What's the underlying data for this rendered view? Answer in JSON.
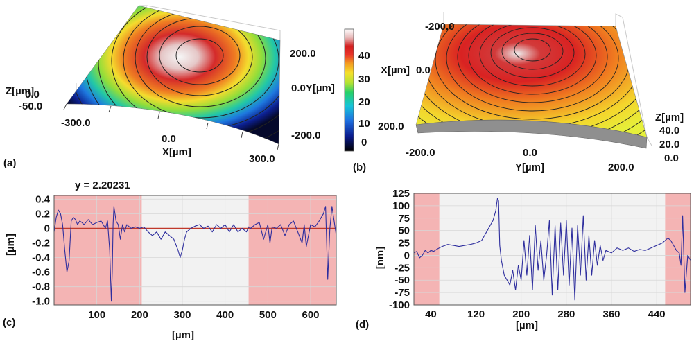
{
  "panels": {
    "a": {
      "label": "(a)",
      "z_axis_label": "Z[µm]",
      "z_ticks": [
        "0.0",
        "-50.0"
      ],
      "x_axis_label": "X[µm]",
      "x_ticks": [
        "-300.0",
        "0.0",
        "300.0"
      ],
      "y_axis_label": "0.0Y[µm]",
      "y_ticks": [
        "200.0",
        "-200.0"
      ]
    },
    "colorbar": {
      "ticks": [
        "40",
        "30",
        "20",
        "10",
        "0"
      ],
      "colors": [
        "#000000",
        "#0a1a8c",
        "#1e6fe0",
        "#17c4d8",
        "#27d06a",
        "#b5e233",
        "#f5e02c",
        "#f39a21",
        "#e8342a",
        "#d21f1f",
        "#e7b8b8",
        "#ffffff"
      ]
    },
    "b": {
      "label": "(b)",
      "x_axis_label": "X[µm]",
      "x_tick_mid": "0.0",
      "x_ticks": [
        "-200.0",
        "200.0"
      ],
      "y_axis_label": "Y[µm]",
      "y_ticks": [
        "-200.0",
        "0.0",
        "200.0"
      ],
      "z_axis_label": "Z[µm]",
      "z_ticks": [
        "40.0",
        "20.0",
        "0.0"
      ]
    },
    "c": {
      "label": "(c)",
      "annotation": "y = 2.20231",
      "ylabel": "[µm]",
      "xlabel": "[µm]"
    },
    "d": {
      "label": "(d)",
      "ylabel": "[nm]",
      "xlabel": "[µm]"
    }
  },
  "chart_data": [
    {
      "panel": "c",
      "type": "line",
      "xlabel": "[µm]",
      "ylabel": "[µm]",
      "xlim": [
        0,
        660
      ],
      "ylim": [
        -1.05,
        0.45
      ],
      "x_ticks": [
        100,
        200,
        300,
        400,
        500,
        600
      ],
      "y_ticks": [
        0.4,
        0.2,
        0,
        -0.2,
        -0.4,
        -0.6,
        -0.8,
        -1.0
      ],
      "y_tick_labels": [
        "0.4",
        "0.2",
        "0",
        "-0.2",
        "-0.4",
        "-0.6",
        "-0.8",
        "-1.0"
      ],
      "shaded_regions": [
        [
          0,
          205
        ],
        [
          455,
          660
        ]
      ],
      "reference_line": 0,
      "series_color": "#2e2e9e",
      "reference_color": "#c0392b",
      "shade_color": "#f4a9a9",
      "x": [
        0,
        5,
        10,
        15,
        20,
        25,
        30,
        35,
        40,
        45,
        50,
        55,
        60,
        65,
        70,
        80,
        90,
        100,
        110,
        120,
        125,
        130,
        134,
        136,
        138,
        140,
        145,
        150,
        155,
        160,
        165,
        170,
        180,
        190,
        200,
        210,
        220,
        230,
        240,
        250,
        260,
        270,
        280,
        290,
        295,
        300,
        305,
        310,
        320,
        330,
        340,
        350,
        360,
        370,
        380,
        390,
        400,
        410,
        420,
        430,
        440,
        450,
        455,
        460,
        470,
        480,
        490,
        500,
        505,
        510,
        520,
        530,
        540,
        550,
        560,
        570,
        580,
        585,
        590,
        600,
        610,
        620,
        630,
        635,
        640,
        645,
        650,
        655,
        660
      ],
      "y": [
        -0.05,
        0.15,
        0.25,
        0.2,
        0.05,
        -0.3,
        -0.6,
        -0.45,
        0.1,
        0.15,
        0.12,
        0.05,
        0.1,
        0.08,
        0.05,
        0.12,
        0.05,
        0.08,
        0.1,
        0.0,
        0.1,
        -0.3,
        -1.0,
        -0.6,
        0.05,
        0.3,
        0.1,
        0.05,
        -0.15,
        0.05,
        -0.05,
        0.05,
        0.0,
        0.02,
        0.0,
        0.02,
        -0.05,
        -0.1,
        -0.05,
        -0.15,
        -0.05,
        -0.1,
        -0.15,
        -0.3,
        -0.4,
        -0.3,
        -0.15,
        -0.05,
        0.0,
        0.03,
        0.05,
        0.0,
        0.03,
        -0.05,
        0.05,
        0.0,
        0.05,
        -0.05,
        0.05,
        -0.05,
        0.0,
        -0.05,
        0.02,
        0.0,
        0.05,
        0.08,
        -0.15,
        0.05,
        -0.2,
        0.02,
        0.0,
        0.05,
        -0.1,
        0.05,
        0.1,
        -0.05,
        -0.2,
        0.05,
        -0.25,
        0.05,
        0.02,
        0.1,
        0.2,
        0.3,
        -0.7,
        0.0,
        0.3,
        0.1,
        -0.1
      ]
    },
    {
      "panel": "d",
      "type": "line",
      "xlabel": "[µm]",
      "ylabel": "[nm]",
      "xlim": [
        10,
        500
      ],
      "ylim": [
        -100,
        125
      ],
      "x_ticks": [
        40,
        120,
        200,
        280,
        360,
        440
      ],
      "y_ticks": [
        125,
        100,
        75,
        50,
        25,
        0,
        -25,
        -50,
        -75,
        -100
      ],
      "shaded_regions": [
        [
          10,
          55
        ],
        [
          455,
          500
        ]
      ],
      "series_color": "#2e2e9e",
      "shade_color": "#f4a9a9",
      "x": [
        10,
        15,
        20,
        25,
        30,
        35,
        40,
        45,
        50,
        55,
        60,
        70,
        80,
        90,
        100,
        110,
        120,
        130,
        140,
        145,
        150,
        155,
        158,
        160,
        162,
        165,
        170,
        175,
        180,
        185,
        190,
        195,
        200,
        205,
        210,
        215,
        220,
        225,
        230,
        235,
        240,
        245,
        250,
        255,
        260,
        265,
        270,
        275,
        280,
        285,
        290,
        295,
        300,
        305,
        310,
        315,
        320,
        325,
        330,
        335,
        340,
        345,
        350,
        360,
        370,
        380,
        390,
        400,
        410,
        420,
        430,
        440,
        450,
        455,
        460,
        465,
        470,
        475,
        480,
        483,
        486,
        490,
        495,
        500
      ],
      "y": [
        5,
        8,
        -5,
        0,
        10,
        5,
        10,
        8,
        12,
        15,
        18,
        22,
        20,
        18,
        20,
        22,
        25,
        30,
        50,
        60,
        70,
        90,
        115,
        110,
        20,
        -10,
        -40,
        -50,
        -60,
        -30,
        -70,
        -20,
        -50,
        30,
        -40,
        40,
        -70,
        60,
        -30,
        30,
        -50,
        0,
        70,
        -80,
        60,
        -70,
        65,
        -40,
        70,
        -60,
        55,
        -90,
        60,
        -40,
        80,
        -50,
        40,
        -40,
        30,
        -20,
        20,
        -10,
        10,
        5,
        15,
        10,
        15,
        8,
        12,
        10,
        15,
        20,
        25,
        30,
        35,
        30,
        20,
        10,
        5,
        -20,
        80,
        -75,
        0,
        -10
      ]
    }
  ]
}
